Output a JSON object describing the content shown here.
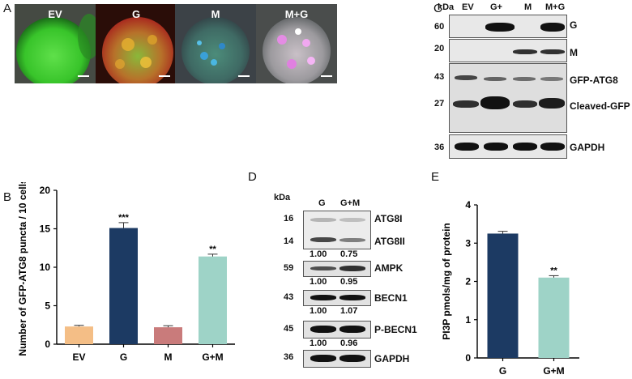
{
  "panels": {
    "A": "A",
    "B": "B",
    "C": "C",
    "D": "D",
    "E": "E"
  },
  "panel_a": {
    "labels": [
      "EV",
      "G",
      "M",
      "M+G"
    ]
  },
  "panel_c": {
    "kda_header": "kDa",
    "lanes": [
      "EV",
      "G+",
      "M",
      "M+G"
    ],
    "markers": [
      "60",
      "20",
      "43",
      "27",
      "36"
    ],
    "labels": [
      "G",
      "M",
      "GFP-ATG8",
      "Cleaved-GFP",
      "GAPDH"
    ]
  },
  "panel_d": {
    "kda_header": "kDa",
    "lanes": [
      "G",
      "G+M"
    ],
    "markers": [
      "16",
      "14",
      "59",
      "43",
      "45",
      "36"
    ],
    "labels": [
      "ATG8I",
      "ATG8II",
      "AMPK",
      "BECN1",
      "P-BECN1",
      "GAPDH"
    ],
    "quant": [
      [
        "1.00",
        "0.75"
      ],
      [
        "1.00",
        "0.95"
      ],
      [
        "1.00",
        "1.07"
      ],
      [
        "1.00",
        "0.96"
      ]
    ]
  },
  "chart_data": [
    {
      "type": "bar",
      "panel": "B",
      "categories": [
        "EV",
        "G",
        "M",
        "G+M"
      ],
      "values": [
        2.3,
        15.1,
        2.2,
        11.4
      ],
      "errors": [
        0.15,
        0.7,
        0.2,
        0.3
      ],
      "significance": [
        "",
        "***",
        "",
        "**"
      ],
      "colors": [
        "#F4BE86",
        "#1C3A63",
        "#C97B7B",
        "#9ED3C7"
      ],
      "ylabel": "Number of GFP-ATG8 puncta / 10 cells",
      "ylim": [
        0,
        20
      ],
      "yticks": [
        0,
        5,
        10,
        15,
        20
      ]
    },
    {
      "type": "bar",
      "panel": "E",
      "categories": [
        "G",
        "G+M"
      ],
      "values": [
        3.25,
        2.1
      ],
      "errors": [
        0.06,
        0.05
      ],
      "significance": [
        "",
        "**"
      ],
      "colors": [
        "#1C3A63",
        "#9ED3C7"
      ],
      "ylabel": "PI3P pmols/mg of protein",
      "ylim": [
        0,
        4
      ],
      "yticks": [
        0,
        1,
        2,
        3,
        4
      ]
    }
  ]
}
